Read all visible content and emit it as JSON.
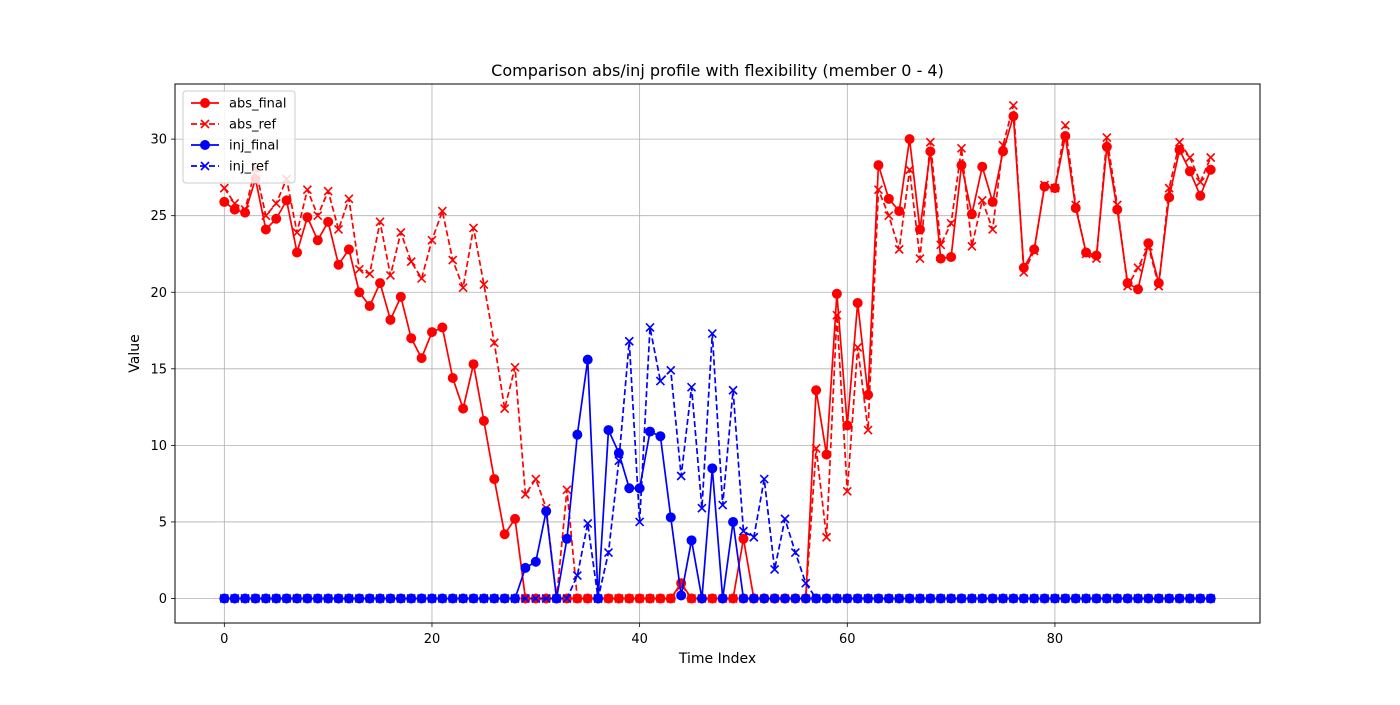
{
  "chart_data": {
    "type": "line",
    "title": "Comparison abs/inj profile with flexibility (member 0 - 4)",
    "xlabel": "Time Index",
    "ylabel": "Value",
    "xlim": [
      -4.75,
      99.75
    ],
    "ylim": [
      -1.6,
      33.6
    ],
    "xticks": [
      0,
      20,
      40,
      60,
      80
    ],
    "yticks": [
      0,
      5,
      10,
      15,
      20,
      25,
      30
    ],
    "grid": true,
    "legend_position": "upper left",
    "x": [
      0,
      1,
      2,
      3,
      4,
      5,
      6,
      7,
      8,
      9,
      10,
      11,
      12,
      13,
      14,
      15,
      16,
      17,
      18,
      19,
      20,
      21,
      22,
      23,
      24,
      25,
      26,
      27,
      28,
      29,
      30,
      31,
      32,
      33,
      34,
      35,
      36,
      37,
      38,
      39,
      40,
      41,
      42,
      43,
      44,
      45,
      46,
      47,
      48,
      49,
      50,
      51,
      52,
      53,
      54,
      55,
      56,
      57,
      58,
      59,
      60,
      61,
      62,
      63,
      64,
      65,
      66,
      67,
      68,
      69,
      70,
      71,
      72,
      73,
      74,
      75,
      76,
      77,
      78,
      79,
      80,
      81,
      82,
      83,
      84,
      85,
      86,
      87,
      88,
      89,
      90,
      91,
      92,
      93,
      94,
      95
    ],
    "series": [
      {
        "name": "abs_final",
        "color": "#ff0000",
        "linestyle": "solid",
        "marker": "circle",
        "values": [
          25.9,
          25.4,
          25.2,
          27.4,
          24.1,
          24.8,
          26.0,
          22.6,
          24.9,
          23.4,
          24.6,
          21.8,
          22.8,
          20.0,
          19.1,
          20.6,
          18.2,
          19.7,
          17.0,
          15.7,
          17.4,
          17.7,
          14.4,
          12.4,
          15.3,
          11.6,
          7.8,
          4.2,
          5.2,
          0,
          0,
          0,
          0,
          0,
          0,
          0,
          0,
          0,
          0,
          0,
          0,
          0,
          0,
          0,
          1.0,
          0,
          0,
          0,
          0,
          0,
          3.9,
          0,
          0,
          0,
          0,
          0,
          0,
          13.6,
          9.4,
          19.9,
          11.3,
          19.3,
          13.3,
          28.3,
          26.1,
          25.3,
          30.0,
          24.1,
          29.2,
          22.2,
          22.3,
          28.3,
          25.1,
          28.2,
          25.9,
          29.2,
          31.5,
          21.6,
          22.8,
          26.9,
          26.8,
          30.2,
          25.5,
          22.6,
          22.4,
          29.5,
          25.4,
          20.6,
          20.2,
          23.2,
          20.6,
          26.2,
          29.3,
          27.9,
          26.3,
          28.0
        ]
      },
      {
        "name": "abs_ref",
        "color": "#ff0000",
        "linestyle": "dashed",
        "marker": "x",
        "values": [
          26.8,
          25.8,
          25.4,
          28.1,
          25.0,
          25.8,
          27.4,
          23.9,
          26.7,
          25.0,
          26.6,
          24.1,
          26.1,
          21.5,
          21.2,
          24.6,
          21.1,
          23.9,
          22.0,
          20.9,
          23.4,
          25.3,
          22.1,
          20.3,
          24.2,
          20.5,
          16.7,
          12.4,
          15.1,
          6.8,
          7.8,
          5.9,
          0,
          7.1,
          0,
          0,
          0,
          0,
          0,
          0,
          0,
          0,
          0,
          0,
          0.9,
          0,
          0,
          0,
          0,
          0,
          0,
          0,
          0,
          0,
          0,
          0,
          0,
          9.8,
          4.0,
          18.5,
          7.0,
          16.4,
          11.0,
          26.7,
          25.0,
          22.8,
          28.0,
          22.2,
          29.8,
          23.1,
          24.5,
          29.4,
          23.0,
          26.0,
          24.1,
          29.6,
          32.2,
          21.3,
          22.7,
          27.0,
          26.8,
          30.9,
          25.7,
          22.5,
          22.2,
          30.1,
          25.7,
          20.4,
          21.6,
          23.0,
          20.4,
          26.8,
          29.8,
          28.8,
          27.2,
          28.8
        ]
      },
      {
        "name": "inj_final",
        "color": "#0000ff",
        "linestyle": "solid",
        "marker": "circle",
        "values": [
          0,
          0,
          0,
          0,
          0,
          0,
          0,
          0,
          0,
          0,
          0,
          0,
          0,
          0,
          0,
          0,
          0,
          0,
          0,
          0,
          0,
          0,
          0,
          0,
          0,
          0,
          0,
          0,
          0,
          2.0,
          2.4,
          5.7,
          0,
          3.9,
          10.7,
          15.6,
          0,
          11.0,
          9.5,
          7.2,
          7.2,
          10.9,
          10.6,
          5.3,
          0.2,
          3.8,
          0,
          8.5,
          0,
          5.0,
          0,
          0,
          0,
          0,
          0,
          0,
          0,
          0,
          0,
          0,
          0,
          0,
          0,
          0,
          0,
          0,
          0,
          0,
          0,
          0,
          0,
          0,
          0,
          0,
          0,
          0,
          0,
          0,
          0,
          0,
          0,
          0,
          0,
          0,
          0,
          0,
          0,
          0,
          0,
          0,
          0,
          0,
          0,
          0,
          0,
          0
        ]
      },
      {
        "name": "inj_ref",
        "color": "#0000ff",
        "linestyle": "dashed",
        "marker": "x",
        "values": [
          0,
          0,
          0,
          0,
          0,
          0,
          0,
          0,
          0,
          0,
          0,
          0,
          0,
          0,
          0,
          0,
          0,
          0,
          0,
          0,
          0,
          0,
          0,
          0,
          0,
          0,
          0,
          0,
          0,
          0,
          0,
          0,
          0,
          0,
          1.5,
          4.9,
          0,
          3.0,
          9.0,
          16.8,
          5.0,
          17.7,
          14.2,
          14.9,
          8.0,
          13.8,
          5.9,
          17.3,
          6.1,
          13.6,
          4.4,
          4.0,
          7.8,
          1.9,
          5.2,
          3.0,
          1.0,
          0,
          0,
          0,
          0,
          0,
          0,
          0,
          0,
          0,
          0,
          0,
          0,
          0,
          0,
          0,
          0,
          0,
          0,
          0,
          0,
          0,
          0,
          0,
          0,
          0,
          0,
          0,
          0,
          0,
          0,
          0,
          0,
          0,
          0,
          0,
          0,
          0,
          0,
          0
        ]
      }
    ]
  }
}
